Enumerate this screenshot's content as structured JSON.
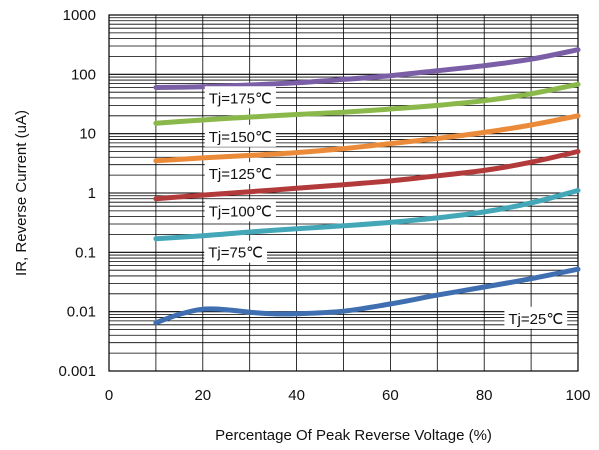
{
  "chart_data": {
    "type": "line",
    "title": "",
    "xlabel": "Percentage Of Peak Reverse Voltage (%)",
    "ylabel": "IR, Reverse Current (uA)",
    "xlim": [
      0,
      100
    ],
    "ylim": [
      0.001,
      1000
    ],
    "yscale": "log",
    "grid": true,
    "x_ticks": [
      "0",
      "20",
      "40",
      "60",
      "80",
      "100"
    ],
    "y_ticks": [
      "1000",
      "100",
      "10",
      "1",
      "0.1",
      "0.01",
      "0.001"
    ],
    "series": [
      {
        "name": "Tj=175℃",
        "color": "#7b5fa6",
        "x": [
          10,
          20,
          30,
          40,
          50,
          60,
          70,
          80,
          90,
          100
        ],
        "y": [
          60,
          62,
          66,
          72,
          82,
          95,
          115,
          140,
          180,
          260
        ]
      },
      {
        "name": "Tj=150℃",
        "color": "#8bb84a",
        "x": [
          10,
          20,
          30,
          40,
          50,
          60,
          70,
          80,
          90,
          100
        ],
        "y": [
          15,
          17,
          19,
          21,
          23,
          26,
          30,
          36,
          47,
          68
        ]
      },
      {
        "name": "Tj=125℃",
        "color": "#eb8b3a",
        "x": [
          10,
          20,
          30,
          40,
          50,
          60,
          70,
          80,
          90,
          100
        ],
        "y": [
          3.5,
          3.9,
          4.3,
          4.8,
          5.6,
          6.8,
          8.3,
          10.5,
          14,
          20
        ]
      },
      {
        "name": "Tj=100℃",
        "color": "#b33a3a",
        "x": [
          10,
          20,
          30,
          40,
          50,
          60,
          70,
          80,
          90,
          100
        ],
        "y": [
          0.8,
          0.92,
          1.05,
          1.2,
          1.38,
          1.6,
          1.95,
          2.4,
          3.3,
          5
        ]
      },
      {
        "name": "Tj=75℃",
        "color": "#43a7b8",
        "x": [
          10,
          20,
          30,
          40,
          50,
          60,
          70,
          80,
          90,
          100
        ],
        "y": [
          0.17,
          0.19,
          0.22,
          0.25,
          0.28,
          0.32,
          0.38,
          0.48,
          0.68,
          1.1
        ]
      },
      {
        "name": "Tj=25℃",
        "color": "#3f6fb0",
        "x": [
          10,
          15,
          20,
          25,
          30,
          35,
          40,
          50,
          60,
          70,
          80,
          90,
          100
        ],
        "y": [
          0.0065,
          0.009,
          0.011,
          0.0108,
          0.0098,
          0.0092,
          0.0092,
          0.0102,
          0.0135,
          0.019,
          0.026,
          0.036,
          0.052
        ]
      }
    ]
  }
}
